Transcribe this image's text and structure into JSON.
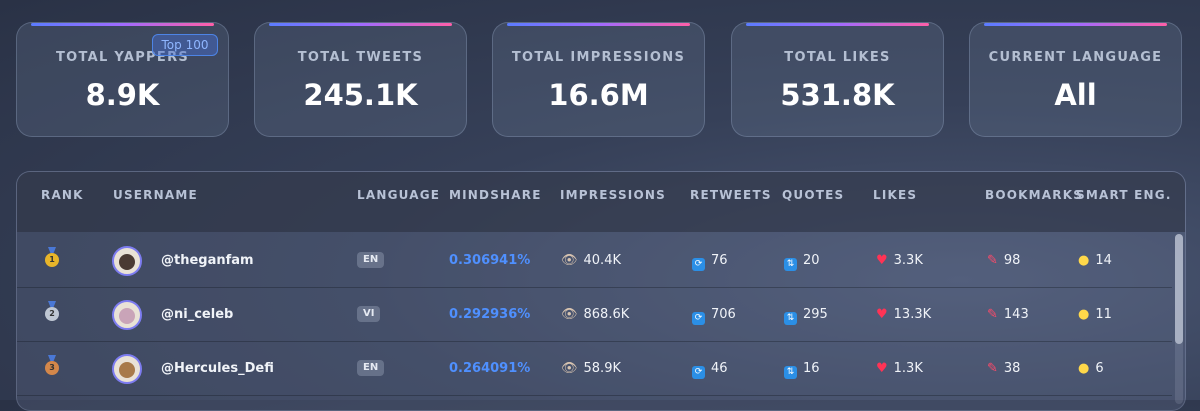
{
  "stats": [
    {
      "label": "TOTAL YAPPERS",
      "value": "8.9K",
      "badge": "Top 100"
    },
    {
      "label": "TOTAL TWEETS",
      "value": "245.1K"
    },
    {
      "label": "TOTAL IMPRESSIONS",
      "value": "16.6M"
    },
    {
      "label": "TOTAL LIKES",
      "value": "531.8K"
    },
    {
      "label": "CURRENT LANGUAGE",
      "value": "All"
    }
  ],
  "table": {
    "headers": [
      "RANK",
      "USERNAME",
      "LANGUAGE",
      "MINDSHARE",
      "IMPRESSIONS",
      "RETWEETS",
      "QUOTES",
      "LIKES",
      "BOOKMARKS",
      "SMART ENG."
    ],
    "rows": [
      {
        "rank": "1",
        "username": "@theganfam",
        "language": "EN",
        "mindshare": "0.306941%",
        "impressions": "40.4K",
        "retweets": "76",
        "quotes": "20",
        "likes": "3.3K",
        "bookmarks": "98",
        "smart": "14"
      },
      {
        "rank": "2",
        "username": "@ni_celeb",
        "language": "VI",
        "mindshare": "0.292936%",
        "impressions": "868.6K",
        "retweets": "706",
        "quotes": "295",
        "likes": "13.3K",
        "bookmarks": "143",
        "smart": "11"
      },
      {
        "rank": "3",
        "username": "@Hercules_Defi",
        "language": "EN",
        "mindshare": "0.264091%",
        "impressions": "58.9K",
        "retweets": "46",
        "quotes": "16",
        "likes": "1.3K",
        "bookmarks": "38",
        "smart": "6"
      }
    ]
  },
  "icons": {
    "impressions": "eye-icon",
    "retweets": "retweet-icon",
    "quotes": "quote-icon",
    "likes": "heart-icon",
    "bookmarks": "pushpin-icon",
    "smart": "lightbulb-icon"
  },
  "colors": {
    "mindshare": "#4f90ff",
    "accent_gradient": [
      "#5b7cff",
      "#a06bff",
      "#ff5fa8"
    ]
  }
}
